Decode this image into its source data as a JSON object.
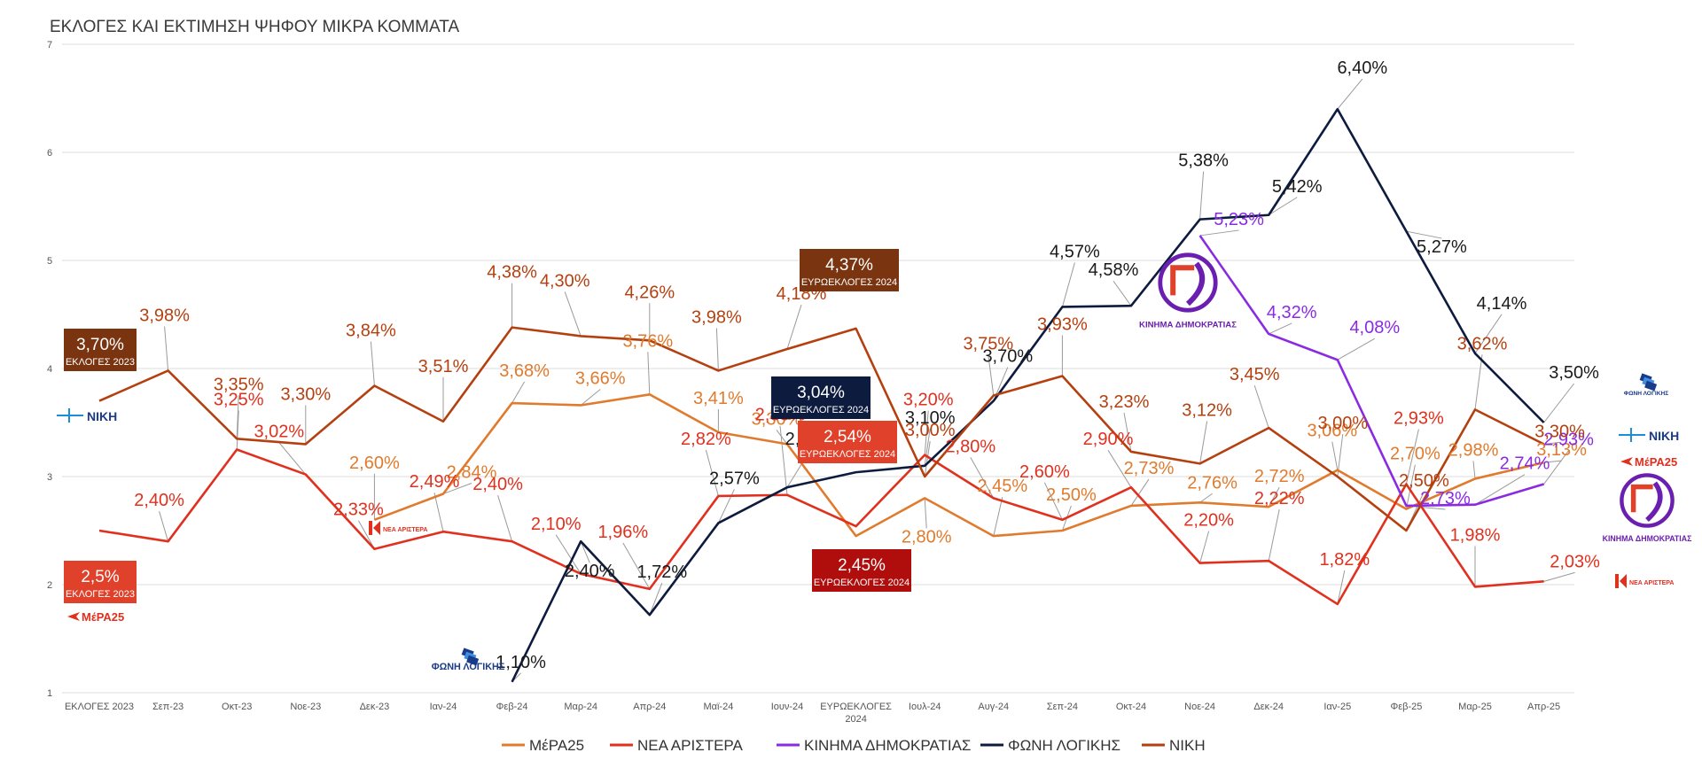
{
  "chart_data": {
    "type": "line",
    "title": "ΕΚΛΟΓΕΣ ΚΑΙ ΕΚΤΙΜΗΣΗ  ΨΗΦΟΥ ΜΙΚΡΑ ΚΟΜΜΑΤΑ",
    "categories": [
      "ΕΚΛΟΓΕΣ 2023",
      "Σεπ-23",
      "Οκτ-23",
      "Νοε-23",
      "Δεκ-23",
      "Ιαν-24",
      "Φεβ-24",
      "Μαρ-24",
      "Απρ-24",
      "Μαϊ-24",
      "Ιουν-24",
      "ΕΥΡΩΕΚΛΟΓΕΣ 2024",
      "Ιουλ-24",
      "Αυγ-24",
      "Σεπ-24",
      "Οκτ-24",
      "Νοε-24",
      "Δεκ-24",
      "Ιαν-25",
      "Φεβ-25",
      "Μαρ-25",
      "Απρ-25"
    ],
    "ylim": [
      1,
      7
    ],
    "yticks": [
      "1",
      "2",
      "3",
      "4",
      "5",
      "6",
      "7"
    ],
    "grid": true,
    "legend_position": "bottom",
    "series": [
      {
        "name": "ΜέΡΑ25",
        "color": "#E07B2E",
        "values": [
          null,
          null,
          null,
          null,
          2.6,
          2.84,
          3.68,
          3.66,
          3.76,
          3.41,
          3.3,
          2.45,
          2.8,
          2.45,
          2.5,
          2.73,
          2.76,
          2.72,
          3.06,
          2.7,
          2.98,
          3.13
        ],
        "labels": [
          null,
          null,
          null,
          null,
          "2,60%",
          "2,84%",
          "3,68%",
          "3,66%",
          "3,76%",
          "3,41%",
          "3,30%",
          null,
          "2,80%",
          "2,45%",
          "2,50%",
          "2,73%",
          "2,76%",
          "2,72%",
          "3,06%",
          "2,70%",
          "2,98%",
          "3,13%"
        ]
      },
      {
        "name": "ΝΕΑ ΑΡΙΣΤΕΡΑ",
        "color": "#E0301E",
        "values": [
          2.5,
          2.4,
          3.25,
          3.02,
          2.33,
          2.49,
          2.4,
          2.1,
          1.96,
          2.82,
          2.83,
          2.54,
          3.2,
          2.8,
          2.6,
          2.9,
          2.2,
          2.22,
          1.82,
          2.93,
          1.98,
          2.03
        ],
        "labels": [
          null,
          "2,40%",
          "3,25%",
          "3,02%",
          "2,33%",
          "2,49%",
          "2,40%",
          "2,10%",
          "1,96%",
          "2,82%",
          "2,83%",
          null,
          "3,20%",
          "2,80%",
          "2,60%",
          "2,90%",
          "2,20%",
          "2,22%",
          "1,82%",
          "2,93%",
          "1,98%",
          "2,03%"
        ]
      },
      {
        "name": "ΚΙΝΗΜΑ ΔΗΜΟΚΡΑΤΙΑΣ",
        "color": "#8A2BE2",
        "values": [
          null,
          null,
          null,
          null,
          null,
          null,
          null,
          null,
          null,
          null,
          null,
          null,
          null,
          null,
          null,
          null,
          5.23,
          4.32,
          4.08,
          2.73,
          2.74,
          2.93
        ],
        "labels": [
          null,
          null,
          null,
          null,
          null,
          null,
          null,
          null,
          null,
          null,
          null,
          null,
          null,
          null,
          null,
          null,
          "5,23%",
          "4,32%",
          "4,08%",
          "2,73%",
          "2,74%",
          "2,93%"
        ]
      },
      {
        "name": "ΦΩΝΗ ΛΟΓΙΚΗΣ",
        "color": "#0D1B3E",
        "values": [
          null,
          null,
          null,
          null,
          null,
          null,
          1.1,
          2.4,
          1.72,
          2.57,
          2.9,
          3.04,
          3.1,
          3.7,
          4.57,
          4.58,
          5.38,
          5.42,
          6.4,
          5.27,
          4.14,
          3.5
        ],
        "labels": [
          null,
          null,
          null,
          null,
          null,
          null,
          "1,10%",
          "2,40%",
          "1,72%",
          "2,57%",
          "2,90%",
          null,
          "3,10%",
          "3,70%",
          "4,57%",
          "4,58%",
          "5,38%",
          "5,42%",
          "6,40%",
          "5,27%",
          "4,14%",
          "3,50%"
        ]
      },
      {
        "name": "ΝΙΚΗ",
        "color": "#B5400F",
        "values": [
          3.7,
          3.98,
          3.35,
          3.3,
          3.84,
          3.51,
          4.38,
          4.3,
          4.26,
          3.98,
          4.18,
          4.37,
          3.0,
          3.75,
          3.93,
          3.23,
          3.12,
          3.45,
          3.0,
          2.5,
          3.62,
          3.3
        ],
        "labels": [
          null,
          "3,98%",
          "3,35%",
          "3,30%",
          "3,84%",
          "3,51%",
          "4,38%",
          "4,30%",
          "4,26%",
          "3,98%",
          "4,18%",
          null,
          "3,00%",
          "3,75%",
          "3,93%",
          "3,23%",
          "3,12%",
          "3,45%",
          "3,00%",
          "2,50%",
          "3,62%",
          "3,30%"
        ]
      }
    ],
    "callouts": [
      {
        "value": "3,70%",
        "sub": "ΕΚΛΟΓΕΣ 2023",
        "color": "#7A3510"
      },
      {
        "value": "2,5%",
        "sub": "ΕΚΛΟΓΕΣ 2023",
        "color": "#E0412B"
      },
      {
        "value": "4,37%",
        "sub": "ΕΥΡΩΕΚΛΟΓΕΣ 2024",
        "color": "#7A3510"
      },
      {
        "value": "3,04%",
        "sub": "ΕΥΡΩΕΚΛΟΓΕΣ 2024",
        "color": "#0D1B3E"
      },
      {
        "value": "2,54%",
        "sub": "ΕΥΡΩΕΚΛΟΓΕΣ 2024",
        "color": "#E0412B"
      },
      {
        "value": "2,45%",
        "sub": "ΕΥΡΩΕΚΛΟΓΕΣ 2024",
        "color": "#B00D0D"
      }
    ],
    "logos": [
      {
        "name": "niki-logo",
        "text": "ΝΙΚΗ",
        "color": "#1A3A8A"
      },
      {
        "name": "mera25-logo",
        "text": "ΜέΡΑ25",
        "color": "#E0301E"
      },
      {
        "name": "nea-aristera-logo",
        "text": "ΝΕΑ ΑΡΙΣΤΕΡΑ",
        "color": "#E0301E"
      },
      {
        "name": "foni-logikis-logo",
        "text": "ΦΩΝΗ ΛΟΓΙΚΗΣ",
        "color": "#1A3A8A"
      },
      {
        "name": "kinima-dimokratias-logo",
        "text": "ΚΙΝΗΜΑ ΔΗΜΟΚΡΑΤΙΑΣ",
        "color": "#6A1FB0"
      }
    ]
  }
}
